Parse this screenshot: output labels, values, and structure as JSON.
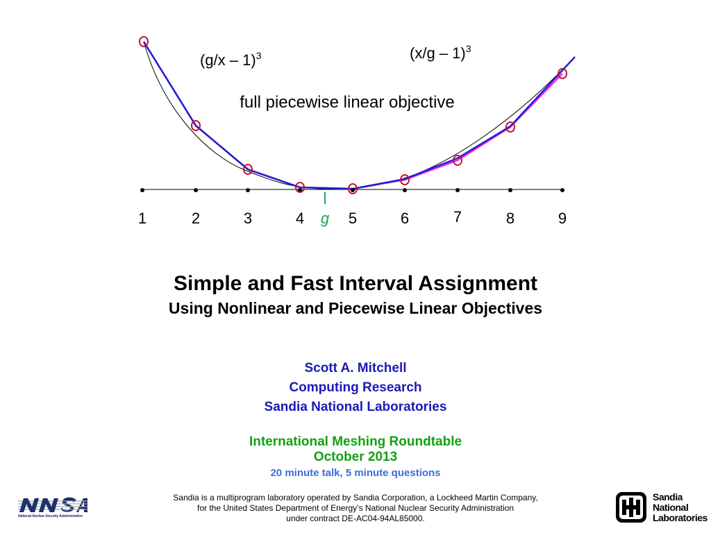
{
  "figure": {
    "left_label": "(g/x – 1)",
    "right_label": "(x/g – 1)",
    "exponent": "3",
    "center_label": "full piecewise linear objective",
    "g_label": "g",
    "ticks": [
      "1",
      "2",
      "3",
      "4",
      "5",
      "6",
      "7",
      "8",
      "9"
    ],
    "colors": {
      "blue": "#1a22d0",
      "magenta": "#ff22ff",
      "marker": "#c0142e",
      "g": "#1aa35a"
    }
  },
  "title": "Simple and Fast Interval Assignment",
  "subtitle": "Using Nonlinear and Piecewise Linear Objectives",
  "author": {
    "name": "Scott A. Mitchell",
    "dept": "Computing Research",
    "org": "Sandia National Laboratories"
  },
  "conference": {
    "name": "International Meshing Roundtable",
    "date": "October 2013"
  },
  "talk_note": "20 minute talk, 5 minute questions",
  "footer": {
    "line1": "Sandia is a multiprogram laboratory operated by Sandia Corporation, a Lockheed Martin Company,",
    "line2": "for the United States Department of Energy’s National Nuclear Security Administration",
    "line3": "under contract DE-AC04-94AL85000."
  },
  "logos": {
    "nnsa_caption": "National Nuclear Security Administration",
    "sandia_words": [
      "Sandia",
      "National",
      "Laboratories"
    ]
  }
}
